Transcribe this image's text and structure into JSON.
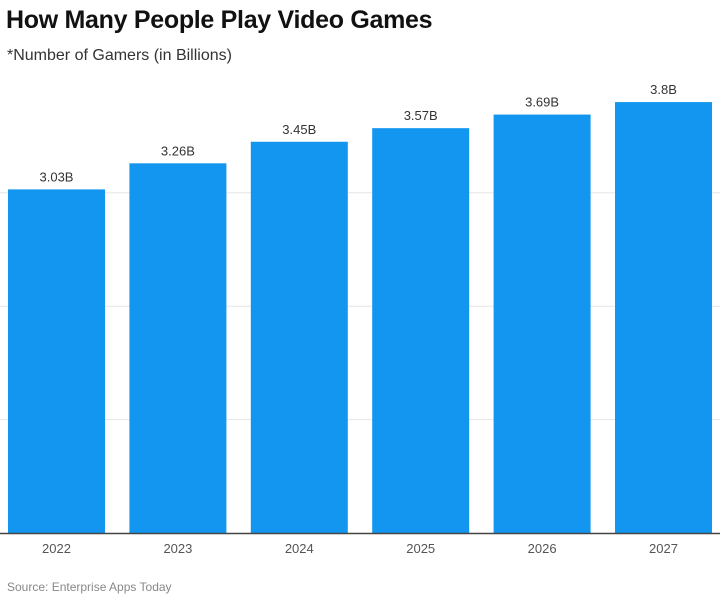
{
  "chart_data": {
    "type": "bar",
    "title": "How Many People Play Video Games",
    "subtitle": "*Number of Gamers (in Billions)",
    "source": "Source: Enterprise Apps Today",
    "categories": [
      "2022",
      "2023",
      "2024",
      "2025",
      "2026",
      "2027"
    ],
    "values": [
      3.03,
      3.26,
      3.45,
      3.57,
      3.69,
      3.8
    ],
    "data_labels": [
      "3.03B",
      "3.26B",
      "3.45B",
      "3.57B",
      "3.69B",
      "3.8B"
    ],
    "xlabel": "",
    "ylabel": "",
    "ylim": [
      0,
      4
    ],
    "gridlines": [
      1,
      2,
      3
    ],
    "grid": true,
    "bar_color": "#1396ef"
  }
}
